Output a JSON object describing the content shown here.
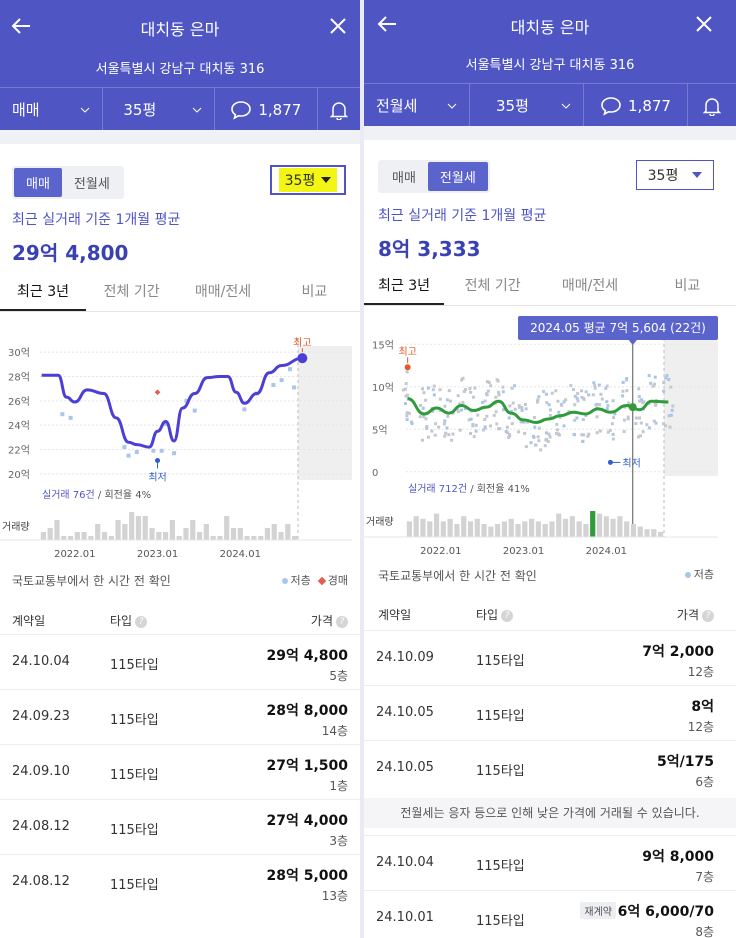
{
  "colors": {
    "brand": "#4f56c4",
    "line_left": "#4b3fd6",
    "line_right": "#2f9c3c",
    "scatter": "#a9bdd8",
    "low_marker": "#2f5fd0",
    "high_marker": "#e2592a"
  },
  "icons": {
    "back": "arrow-left-icon",
    "close": "close-x-icon",
    "comment": "speech-bubble-icon",
    "bell": "bell-icon",
    "caret": "triangle-down-icon",
    "help": "question-circle-icon"
  },
  "left": {
    "header": {
      "title": "대치동 은마",
      "address": "서울특별시 강남구 대치동 316",
      "deal_select": "매매",
      "size_select": "35평",
      "comment_count": "1,877"
    },
    "type_tabs": [
      "매매",
      "전월세"
    ],
    "active_type": 0,
    "size_dropdown": "35평",
    "avg_caption": "최근 실거래 기준 1개월 평균",
    "avg_value": "29억 4,800",
    "period_tabs": [
      "최근 3년",
      "전체 기간",
      "매매/전세",
      "비교"
    ],
    "source_note": "국토교통부에서 한 시간 전 확인",
    "legend": {
      "low": "저층",
      "sale": "경매"
    },
    "table_headers": {
      "date": "계약일",
      "type": "타입",
      "price": "가격"
    },
    "rows": [
      {
        "date": "24.10.04",
        "type": "115타입",
        "price": "29억 4,800",
        "floor": "5층"
      },
      {
        "date": "24.09.23",
        "type": "115타입",
        "price": "28억 8,000",
        "floor": "14층"
      },
      {
        "date": "24.09.10",
        "type": "115타입",
        "price": "27억 1,500",
        "floor": "1층"
      },
      {
        "date": "24.08.12",
        "type": "115타입",
        "price": "27억 4,000",
        "floor": "3층"
      },
      {
        "date": "24.08.12",
        "type": "115타입",
        "price": "28억 5,000",
        "floor": "13층"
      }
    ]
  },
  "right": {
    "header": {
      "title": "대치동 은마",
      "address": "서울특별시 강남구 대치동 316",
      "deal_select": "전월세",
      "size_select": "35평",
      "comment_count": "1,877"
    },
    "type_tabs": [
      "매매",
      "전월세"
    ],
    "active_type": 1,
    "size_dropdown": "35평",
    "avg_caption": "최근 실거래 기준 1개월 평균",
    "avg_value": "8억 3,333",
    "period_tabs": [
      "최근 3년",
      "전체 기간",
      "매매/전세",
      "비교"
    ],
    "source_note": "국토교통부에서 한 시간 전 확인",
    "legend": {
      "low": "저층"
    },
    "table_headers": {
      "date": "계약일",
      "type": "타입",
      "price": "가격"
    },
    "notice": "전월세는 응자 등으로 인해 낮은 가격에 거래될 수 있습니다.",
    "rows": [
      {
        "date": "24.10.09",
        "type": "115타입",
        "price": "7억 2,000",
        "floor": "12층"
      },
      {
        "date": "24.10.05",
        "type": "115타입",
        "price": "8억",
        "floor": "12층"
      },
      {
        "date": "24.10.05",
        "type": "115타입",
        "price": "5억/175",
        "floor": "6층"
      },
      {
        "date": "24.10.04",
        "type": "115타입",
        "price": "9억 8,000",
        "floor": "7층"
      },
      {
        "date": "24.10.01",
        "type": "115타입",
        "price": "6억 6,000/70",
        "floor": "8층",
        "badge": "재계약"
      }
    ]
  },
  "chart_data": [
    {
      "type": "line",
      "y_tick_labels": [
        "30억",
        "28억",
        "26억",
        "24억",
        "22억",
        "20억"
      ],
      "y_ticks": [
        30,
        28,
        26,
        24,
        22,
        20
      ],
      "ylim": [
        19.5,
        30.5
      ],
      "x_tick_labels": [
        "2022.01",
        "2023.01",
        "2024.01"
      ],
      "x_ticks": [
        2022.0,
        2023.0,
        2024.0
      ],
      "xlim": [
        2021.58,
        2025.35
      ],
      "series": [
        {
          "values": [
            [
              2021.6,
              28.1
            ],
            [
              2021.8,
              28.1
            ],
            [
              2021.9,
              26.3
            ],
            [
              2022.0,
              25.9
            ],
            [
              2022.15,
              26.9
            ],
            [
              2022.35,
              26.6
            ],
            [
              2022.5,
              24.6
            ],
            [
              2022.65,
              22.6
            ],
            [
              2022.75,
              22.4
            ],
            [
              2022.9,
              22.2
            ],
            [
              2023.0,
              23.5
            ],
            [
              2023.1,
              24.3
            ],
            [
              2023.2,
              22.7
            ],
            [
              2023.3,
              25.4
            ],
            [
              2023.45,
              26.6
            ],
            [
              2023.6,
              27.9
            ],
            [
              2023.75,
              28.0
            ],
            [
              2023.85,
              28.0
            ],
            [
              2023.95,
              26.7
            ],
            [
              2024.05,
              25.8
            ],
            [
              2024.2,
              26.6
            ],
            [
              2024.35,
              28.3
            ],
            [
              2024.5,
              28.9
            ],
            [
              2024.75,
              29.5
            ]
          ]
        }
      ],
      "low_floor_points": [
        [
          2021.85,
          24.9
        ],
        [
          2021.95,
          24.6
        ],
        [
          2022.6,
          22.2
        ],
        [
          2022.65,
          21.5
        ],
        [
          2022.75,
          21.8
        ],
        [
          2022.95,
          21.9
        ],
        [
          2023.05,
          21.9
        ],
        [
          2023.1,
          24.1
        ],
        [
          2023.2,
          21.7
        ],
        [
          2023.35,
          26.0
        ],
        [
          2023.45,
          25.2
        ],
        [
          2024.05,
          25.3
        ],
        [
          2024.2,
          26.6
        ],
        [
          2024.4,
          27.3
        ],
        [
          2024.5,
          27.7
        ],
        [
          2024.6,
          28.6
        ],
        [
          2024.65,
          27.1
        ]
      ],
      "auction_points": [
        [
          2023.0,
          26.7
        ]
      ],
      "high": {
        "label": "최고",
        "x": 2024.75,
        "y": 29.5
      },
      "low": {
        "label": "최저",
        "x": 2023.0,
        "y": 21.1
      },
      "stats": {
        "count_label": "실거래 76건",
        "turnover": " / 회전율 4%"
      },
      "volume_label": "거래량",
      "volume": [
        2,
        3,
        5,
        1,
        1,
        2,
        2,
        1,
        4,
        2,
        1,
        5,
        4,
        7,
        6,
        6,
        3,
        2,
        2,
        5,
        1,
        3,
        5,
        2,
        4,
        1,
        1,
        6,
        3,
        3,
        1,
        1,
        1,
        3,
        4,
        2,
        4,
        1
      ],
      "volume_highlight": []
    },
    {
      "type": "line",
      "y_tick_labels": [
        "15억",
        "10억",
        "5억",
        "0"
      ],
      "y_ticks": [
        15,
        10,
        5,
        0
      ],
      "ylim": [
        -0.5,
        15.5
      ],
      "x_tick_labels": [
        "2022.01",
        "2023.01",
        "2024.01"
      ],
      "x_ticks": [
        2022.0,
        2023.0,
        2024.0
      ],
      "xlim": [
        2021.58,
        2025.35
      ],
      "series": [
        {
          "values": [
            [
              2021.6,
              8.6
            ],
            [
              2021.8,
              6.8
            ],
            [
              2021.95,
              7.5
            ],
            [
              2022.1,
              6.9
            ],
            [
              2022.25,
              7.8
            ],
            [
              2022.4,
              7.2
            ],
            [
              2022.55,
              7.6
            ],
            [
              2022.7,
              8.3
            ],
            [
              2022.85,
              6.9
            ],
            [
              2023.0,
              6.1
            ],
            [
              2023.15,
              5.8
            ],
            [
              2023.3,
              6.2
            ],
            [
              2023.45,
              6.6
            ],
            [
              2023.6,
              7.0
            ],
            [
              2023.75,
              6.8
            ],
            [
              2023.9,
              7.4
            ],
            [
              2024.05,
              7.0
            ],
            [
              2024.25,
              7.8
            ],
            [
              2024.4,
              7.3
            ],
            [
              2024.55,
              8.3
            ],
            [
              2024.75,
              8.2
            ]
          ]
        }
      ],
      "tooltip": {
        "label": "2024.05 평균 7억 5,604 (22건)",
        "x": 2024.32,
        "y": 7.6
      },
      "high": {
        "label": "최고",
        "x": 2021.6,
        "y": 12.3
      },
      "low": {
        "label": "최저",
        "x": 2024.05,
        "y": 1.1
      },
      "stats": {
        "count_label": "실거래 712건",
        "turnover": " / 회전율 41%"
      },
      "volume_label": "거래량",
      "volume": [
        6,
        8,
        7,
        6,
        9,
        6,
        7,
        5,
        8,
        6,
        7,
        5,
        4,
        5,
        6,
        7,
        5,
        6,
        7,
        6,
        5,
        6,
        9,
        7,
        8,
        6,
        5,
        10,
        9,
        8,
        7,
        8,
        6,
        5,
        4,
        3,
        3,
        2
      ],
      "volume_highlight": [
        27
      ]
    }
  ]
}
